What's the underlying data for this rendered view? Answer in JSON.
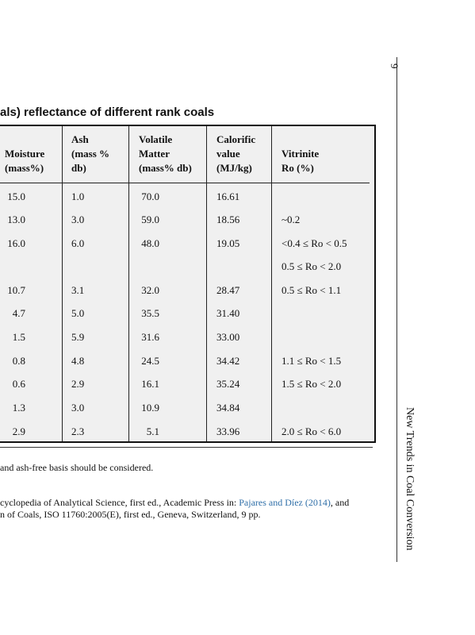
{
  "table": {
    "title": "als) reflectance of different rank coals",
    "columns": [
      {
        "key": "moisture",
        "lines": [
          "Moisture",
          "(mass%)"
        ]
      },
      {
        "key": "ash",
        "lines": [
          "Ash",
          "(mass %",
          "db)"
        ]
      },
      {
        "key": "volatile",
        "lines": [
          "Volatile",
          "Matter",
          "(mass% db)"
        ]
      },
      {
        "key": "calorific",
        "lines": [
          "Calorific",
          "value",
          "(MJ/kg)"
        ]
      },
      {
        "key": "vitrinite",
        "lines": [
          "Vitrinite",
          "Ro (%)"
        ]
      }
    ],
    "rows": [
      {
        "moisture": "15.0",
        "ash": "1.0",
        "volatile": "70.0",
        "calorific": "16.61",
        "vitrinite": ""
      },
      {
        "moisture": "13.0",
        "ash": "3.0",
        "volatile": "59.0",
        "calorific": "18.56",
        "vitrinite": "~0.2"
      },
      {
        "moisture": "16.0",
        "ash": "6.0",
        "volatile": "48.0",
        "calorific": "19.05",
        "vitrinite": "<0.4 ≤ Ro < 0.5"
      },
      {
        "moisture": "",
        "ash": "",
        "volatile": "",
        "calorific": "",
        "vitrinite": "0.5 ≤ Ro < 2.0"
      },
      {
        "moisture": "10.7",
        "ash": "3.1",
        "volatile": "32.0",
        "calorific": "28.47",
        "vitrinite": "0.5 ≤ Ro < 1.1"
      },
      {
        "moisture": "4.7",
        "ash": "5.0",
        "volatile": "35.5",
        "calorific": "31.40",
        "vitrinite": ""
      },
      {
        "moisture": "1.5",
        "ash": "5.9",
        "volatile": "31.6",
        "calorific": "33.00",
        "vitrinite": ""
      },
      {
        "moisture": "0.8",
        "ash": "4.8",
        "volatile": "24.5",
        "calorific": "34.42",
        "vitrinite": "1.1 ≤ Ro < 1.5"
      },
      {
        "moisture": "0.6",
        "ash": "2.9",
        "volatile": "16.1",
        "calorific": "35.24",
        "vitrinite": "1.5 ≤ Ro < 2.0"
      },
      {
        "moisture": "1.3",
        "ash": "3.0",
        "volatile": "10.9",
        "calorific": "34.84",
        "vitrinite": ""
      },
      {
        "moisture": "2.9",
        "ash": "2.3",
        "volatile": "5.1",
        "calorific": "33.96",
        "vitrinite": "2.0 ≤ Ro < 6.0"
      }
    ]
  },
  "footnotes": {
    "note1": "and ash-free basis should be considered.",
    "note2_pre": "cyclopedia of Analytical Science, first ed., Academic Press in: ",
    "note2_link": "Pajares and Díez (2014)",
    "note2_post": ", and",
    "note3": "n of Coals, ISO 11760:2005(E), first ed., Geneva, Switzerland, 9 pp."
  },
  "page": {
    "number": "9",
    "running_head": "New Trends in Coal Conversion"
  },
  "colors": {
    "table_bg": "#f0f0f0",
    "link": "#2f6fa8"
  }
}
